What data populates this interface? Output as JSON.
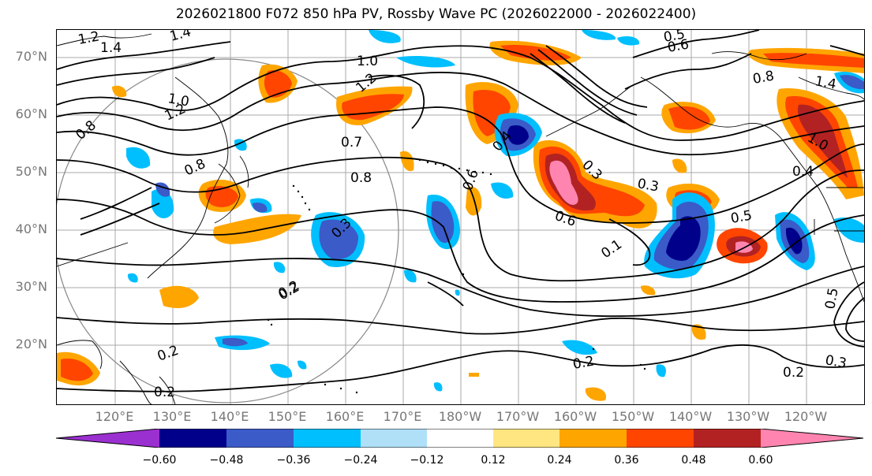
{
  "title": "2026021800 F072 850 hPa PV, Rossby Wave PC (2026022000 - 2026022400)",
  "lat_labels": [
    "70°N",
    "60°N",
    "50°N",
    "40°N",
    "30°N",
    "20°N"
  ],
  "lon_labels": [
    "120°E",
    "130°E",
    "140°E",
    "150°E",
    "160°E",
    "170°E",
    "180°W",
    "170°W",
    "160°W",
    "150°W",
    "140°W",
    "130°W",
    "120°W"
  ],
  "colorbar": {
    "ticks": [
      "−0.60",
      "−0.48",
      "−0.36",
      "−0.24",
      "−0.12",
      "0.12",
      "0.24",
      "0.36",
      "0.48",
      "0.60"
    ],
    "colors": [
      "#9b30d0",
      "#00008b",
      "#3a5bc8",
      "#00bfff",
      "#b0e0f8",
      "#ffffff",
      "#ffe680",
      "#ffa500",
      "#ff4500",
      "#b22222",
      "#ff85b0"
    ]
  },
  "contour_labels": [
    "1.2",
    "1.4",
    "1.4",
    "1.0",
    "1.2",
    "1.0",
    "1.2",
    "0.5",
    "0.6",
    "0.8",
    "0.7",
    "0.8",
    "0.6",
    "0.4",
    "0.3",
    "0.3",
    "0.2",
    "0.2",
    "0.2",
    "0.6",
    "0.3",
    "0.1",
    "0.5",
    "0.4",
    "1.0",
    "0.8",
    "1.4",
    "0.2",
    "0.3",
    "0.2",
    "0.5",
    "0.8",
    "0.2"
  ],
  "colors": {
    "contour": "#000000",
    "grid": "#999999",
    "coast": "#000000",
    "axis_label": "#777777"
  }
}
